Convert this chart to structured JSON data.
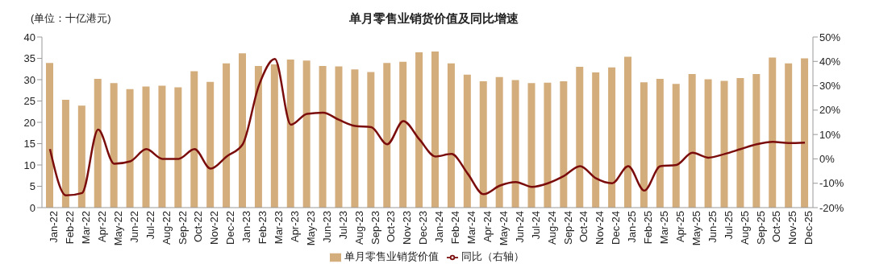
{
  "chart_data": {
    "type": "bar",
    "title": "单月零售业销货价值及同比增速",
    "annotations": [
      "(单位：十亿港元)"
    ],
    "categories": [
      "Jan-22",
      "Feb-22",
      "Mar-22",
      "Apr-22",
      "May-22",
      "Jun-22",
      "Jul-22",
      "Aug-22",
      "Sep-22",
      "Oct-22",
      "Nov-22",
      "Dec-22",
      "Jan-23",
      "Feb-23",
      "Mar-23",
      "Apr-23",
      "May-23",
      "Jun-23",
      "Jul-23",
      "Aug-23",
      "Sep-23",
      "Oct-23",
      "Nov-23",
      "Dec-23",
      "Jan-24",
      "Feb-24",
      "Mar-24",
      "Apr-24",
      "May-24",
      "Jun-24",
      "Jul-24",
      "Aug-24",
      "Sep-24",
      "Oct-24",
      "Nov-24",
      "Dec-24",
      "Jan-25",
      "Feb-25",
      "Mar-25",
      "Apr-25",
      "May-25",
      "Jun-25",
      "Jul-25",
      "Aug-25",
      "Sep-25",
      "Oct-25",
      "Nov-25",
      "Dec-25"
    ],
    "series": [
      {
        "name": "单月零售业销货价值",
        "color": "#d4ad7c",
        "values": [
          33.9,
          25.3,
          23.9,
          30.2,
          29.2,
          27.8,
          28.4,
          28.6,
          28.2,
          32.0,
          29.5,
          33.8,
          36.2,
          33.2,
          33.6,
          34.7,
          34.5,
          33.2,
          33.1,
          32.4,
          31.8,
          33.9,
          34.2,
          36.4,
          36.6,
          33.8,
          31.2,
          29.6,
          30.6,
          29.9,
          29.2,
          29.3,
          29.6,
          33.0,
          31.7,
          32.9,
          35.4,
          29.4,
          30.2,
          29.0,
          31.3,
          30.1,
          29.7,
          30.4,
          31.3,
          35.2,
          33.8,
          35.0
        ]
      },
      {
        "name": "同比（右轴）",
        "type": "line",
        "axis": "y2",
        "color": "#7b0c0c",
        "values": [
          4,
          -15,
          -14,
          12,
          -2,
          -1,
          4,
          0,
          0,
          4,
          -4,
          1,
          6,
          30,
          41,
          14,
          18.5,
          19,
          16,
          13.5,
          13,
          6,
          15.5,
          8,
          1,
          2,
          -6,
          -14.5,
          -11,
          -9.5,
          -11.5,
          -10,
          -7,
          -3,
          -8,
          -10,
          -3,
          -13,
          -3,
          -2.5,
          2.5,
          0.5,
          2,
          4,
          6,
          7,
          6.5,
          6.7
        ]
      }
    ],
    "ylim": [
      0,
      40
    ],
    "yticks": [
      0,
      5,
      10,
      15,
      20,
      25,
      30,
      35,
      40
    ],
    "y2lim": [
      -20,
      50
    ],
    "y2ticks": [
      {
        "value": -20,
        "label": "-20%"
      },
      {
        "value": -10,
        "label": "-10%"
      },
      {
        "value": 0,
        "label": "0%"
      },
      {
        "value": 10,
        "label": "10%"
      },
      {
        "value": 20,
        "label": "20%"
      },
      {
        "value": 30,
        "label": "30%"
      },
      {
        "value": 40,
        "label": "40%"
      },
      {
        "value": 50,
        "label": "50%"
      }
    ],
    "grid": false,
    "legend": "bottom",
    "marker": "none",
    "line_style": "solid"
  }
}
